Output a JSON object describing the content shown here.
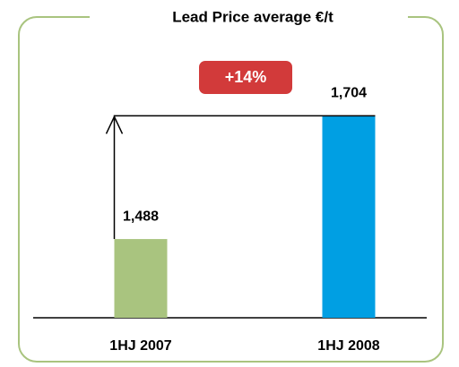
{
  "chart_data": {
    "type": "bar",
    "title": "Lead Price average €/t",
    "annotation": "+14%",
    "categories": [
      "1HJ 2007",
      "1HJ 2008"
    ],
    "values": [
      1488,
      1704
    ],
    "value_labels": [
      "1,488",
      "1,704"
    ],
    "colors": [
      "#a9c47f",
      "#009fe3"
    ],
    "ylim": [
      1350,
      1860
    ]
  }
}
